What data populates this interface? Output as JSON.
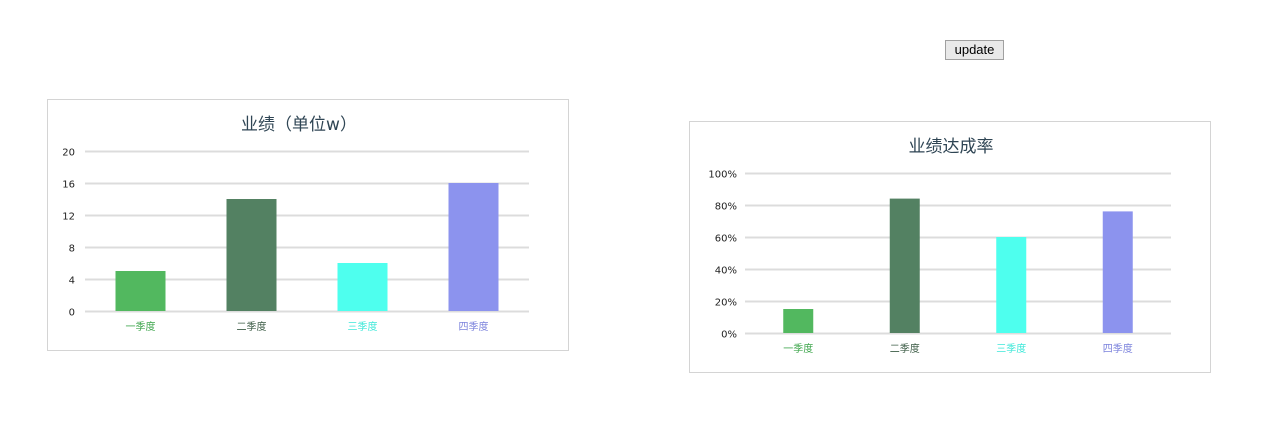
{
  "update_button": {
    "label": "update"
  },
  "chart_data": [
    {
      "type": "bar",
      "title": "业绩（单位w）",
      "categories": [
        "一季度",
        "二季度",
        "三季度",
        "四季度"
      ],
      "values": [
        5,
        14,
        6,
        16
      ],
      "colors": [
        "#52b85f",
        "#538162",
        "#4effee",
        "#8c93ee"
      ],
      "label_colors": [
        "#3ea64c",
        "#3c5c46",
        "#3ee8d9",
        "#7b82dc"
      ],
      "ylim": [
        0,
        20
      ],
      "yticks": [
        "0",
        "4",
        "8",
        "12",
        "16",
        "20"
      ],
      "grid": true,
      "xlabel": "",
      "ylabel": ""
    },
    {
      "type": "bar",
      "title": "业绩达成率",
      "categories": [
        "一季度",
        "二季度",
        "三季度",
        "四季度"
      ],
      "values": [
        15,
        84,
        60,
        76
      ],
      "colors": [
        "#52b85f",
        "#538162",
        "#4effee",
        "#8c93ee"
      ],
      "label_colors": [
        "#3ea64c",
        "#3c5c46",
        "#3ee8d9",
        "#7b82dc"
      ],
      "ylim": [
        0,
        100
      ],
      "yticks": [
        "0%",
        "20%",
        "40%",
        "60%",
        "80%",
        "100%"
      ],
      "grid": true,
      "xlabel": "",
      "ylabel": ""
    }
  ]
}
